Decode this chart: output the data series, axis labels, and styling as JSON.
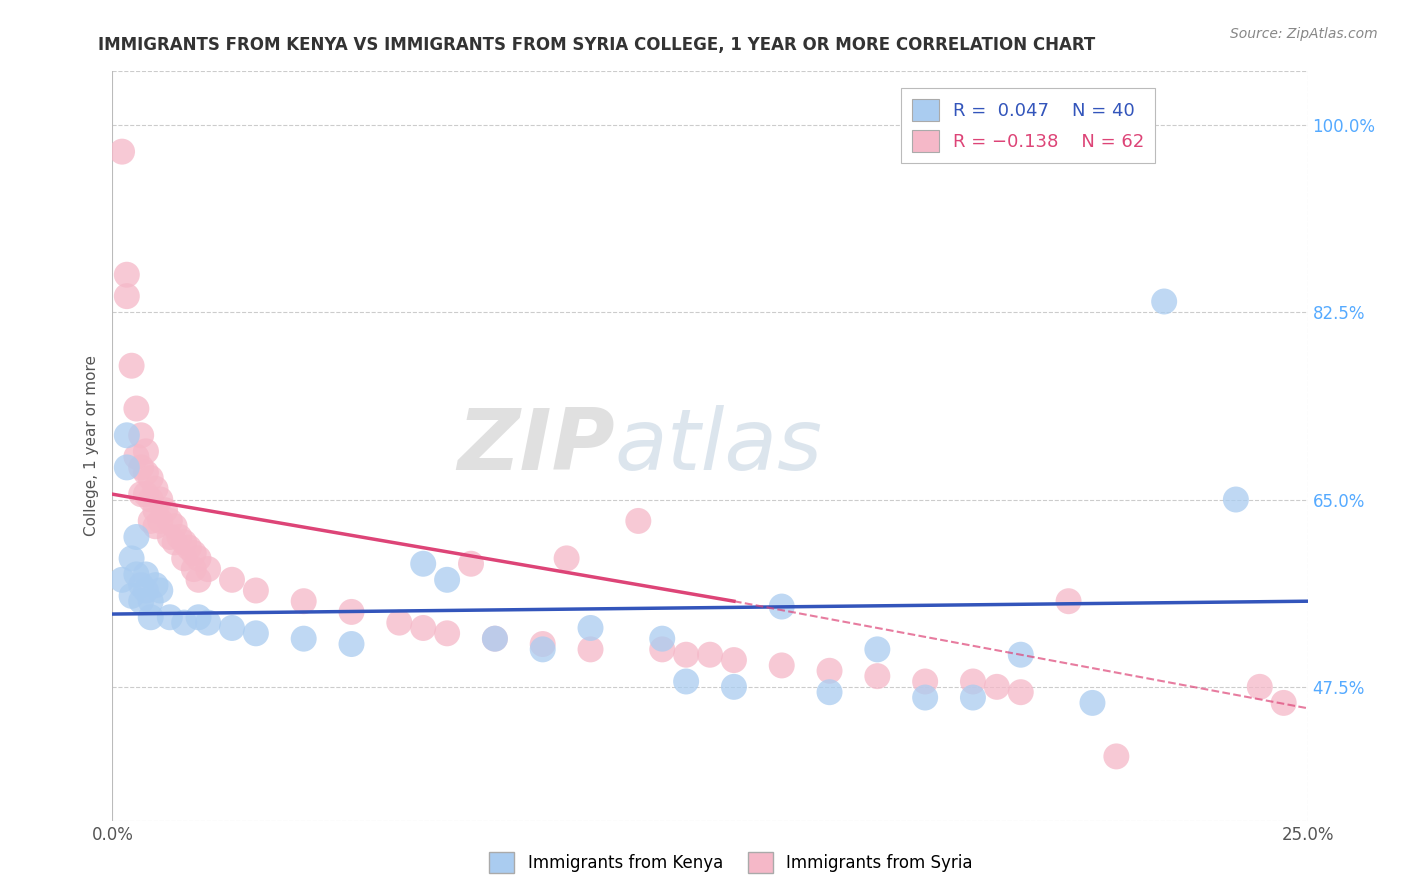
{
  "title": "IMMIGRANTS FROM KENYA VS IMMIGRANTS FROM SYRIA COLLEGE, 1 YEAR OR MORE CORRELATION CHART",
  "source": "Source: ZipAtlas.com",
  "ylabel": "College, 1 year or more",
  "xlim": [
    0.0,
    0.25
  ],
  "ylim": [
    0.35,
    1.05
  ],
  "x_ticks": [
    0.0,
    0.25
  ],
  "x_tick_labels": [
    "0.0%",
    "25.0%"
  ],
  "y_ticks": [
    0.475,
    0.65,
    0.825,
    1.0
  ],
  "y_tick_labels": [
    "47.5%",
    "65.0%",
    "82.5%",
    "100.0%"
  ],
  "watermark_zip": "ZIP",
  "watermark_atlas": "atlas",
  "legend_r1": "R =  0.047",
  "legend_n1": "N = 40",
  "legend_r2": "R = −0.138",
  "legend_n2": "N = 62",
  "kenya_color": "#aaccf0",
  "syria_color": "#f5b8c8",
  "kenya_line_color": "#3355bb",
  "syria_line_color": "#dd4477",
  "kenya_scatter": [
    [
      0.002,
      0.575
    ],
    [
      0.003,
      0.71
    ],
    [
      0.003,
      0.68
    ],
    [
      0.004,
      0.595
    ],
    [
      0.004,
      0.56
    ],
    [
      0.005,
      0.615
    ],
    [
      0.005,
      0.58
    ],
    [
      0.006,
      0.57
    ],
    [
      0.006,
      0.555
    ],
    [
      0.007,
      0.58
    ],
    [
      0.007,
      0.565
    ],
    [
      0.008,
      0.555
    ],
    [
      0.008,
      0.54
    ],
    [
      0.009,
      0.57
    ],
    [
      0.01,
      0.565
    ],
    [
      0.012,
      0.54
    ],
    [
      0.015,
      0.535
    ],
    [
      0.018,
      0.54
    ],
    [
      0.02,
      0.535
    ],
    [
      0.025,
      0.53
    ],
    [
      0.03,
      0.525
    ],
    [
      0.04,
      0.52
    ],
    [
      0.05,
      0.515
    ],
    [
      0.065,
      0.59
    ],
    [
      0.07,
      0.575
    ],
    [
      0.08,
      0.52
    ],
    [
      0.09,
      0.51
    ],
    [
      0.1,
      0.53
    ],
    [
      0.115,
      0.52
    ],
    [
      0.12,
      0.48
    ],
    [
      0.13,
      0.475
    ],
    [
      0.14,
      0.55
    ],
    [
      0.15,
      0.47
    ],
    [
      0.16,
      0.51
    ],
    [
      0.17,
      0.465
    ],
    [
      0.18,
      0.465
    ],
    [
      0.19,
      0.505
    ],
    [
      0.205,
      0.46
    ],
    [
      0.22,
      0.835
    ],
    [
      0.235,
      0.65
    ]
  ],
  "syria_scatter": [
    [
      0.002,
      0.975
    ],
    [
      0.003,
      0.86
    ],
    [
      0.003,
      0.84
    ],
    [
      0.004,
      0.775
    ],
    [
      0.005,
      0.735
    ],
    [
      0.005,
      0.69
    ],
    [
      0.006,
      0.71
    ],
    [
      0.006,
      0.68
    ],
    [
      0.006,
      0.655
    ],
    [
      0.007,
      0.695
    ],
    [
      0.007,
      0.675
    ],
    [
      0.007,
      0.655
    ],
    [
      0.008,
      0.67
    ],
    [
      0.008,
      0.65
    ],
    [
      0.008,
      0.63
    ],
    [
      0.009,
      0.66
    ],
    [
      0.009,
      0.64
    ],
    [
      0.009,
      0.625
    ],
    [
      0.01,
      0.65
    ],
    [
      0.01,
      0.63
    ],
    [
      0.011,
      0.64
    ],
    [
      0.012,
      0.63
    ],
    [
      0.012,
      0.615
    ],
    [
      0.013,
      0.625
    ],
    [
      0.013,
      0.61
    ],
    [
      0.014,
      0.615
    ],
    [
      0.015,
      0.61
    ],
    [
      0.015,
      0.595
    ],
    [
      0.016,
      0.605
    ],
    [
      0.017,
      0.6
    ],
    [
      0.017,
      0.585
    ],
    [
      0.018,
      0.595
    ],
    [
      0.018,
      0.575
    ],
    [
      0.02,
      0.585
    ],
    [
      0.025,
      0.575
    ],
    [
      0.03,
      0.565
    ],
    [
      0.04,
      0.555
    ],
    [
      0.05,
      0.545
    ],
    [
      0.06,
      0.535
    ],
    [
      0.065,
      0.53
    ],
    [
      0.07,
      0.525
    ],
    [
      0.075,
      0.59
    ],
    [
      0.08,
      0.52
    ],
    [
      0.09,
      0.515
    ],
    [
      0.095,
      0.595
    ],
    [
      0.1,
      0.51
    ],
    [
      0.11,
      0.63
    ],
    [
      0.115,
      0.51
    ],
    [
      0.12,
      0.505
    ],
    [
      0.125,
      0.505
    ],
    [
      0.13,
      0.5
    ],
    [
      0.14,
      0.495
    ],
    [
      0.15,
      0.49
    ],
    [
      0.16,
      0.485
    ],
    [
      0.17,
      0.48
    ],
    [
      0.18,
      0.48
    ],
    [
      0.185,
      0.475
    ],
    [
      0.19,
      0.47
    ],
    [
      0.2,
      0.555
    ],
    [
      0.21,
      0.41
    ],
    [
      0.24,
      0.475
    ],
    [
      0.245,
      0.46
    ]
  ],
  "kenya_trendline": [
    [
      0.0,
      0.543
    ],
    [
      0.25,
      0.555
    ]
  ],
  "syria_trendline_solid": [
    [
      0.0,
      0.655
    ],
    [
      0.13,
      0.555
    ]
  ],
  "syria_trendline_dashed": [
    [
      0.13,
      0.555
    ],
    [
      0.25,
      0.455
    ]
  ]
}
